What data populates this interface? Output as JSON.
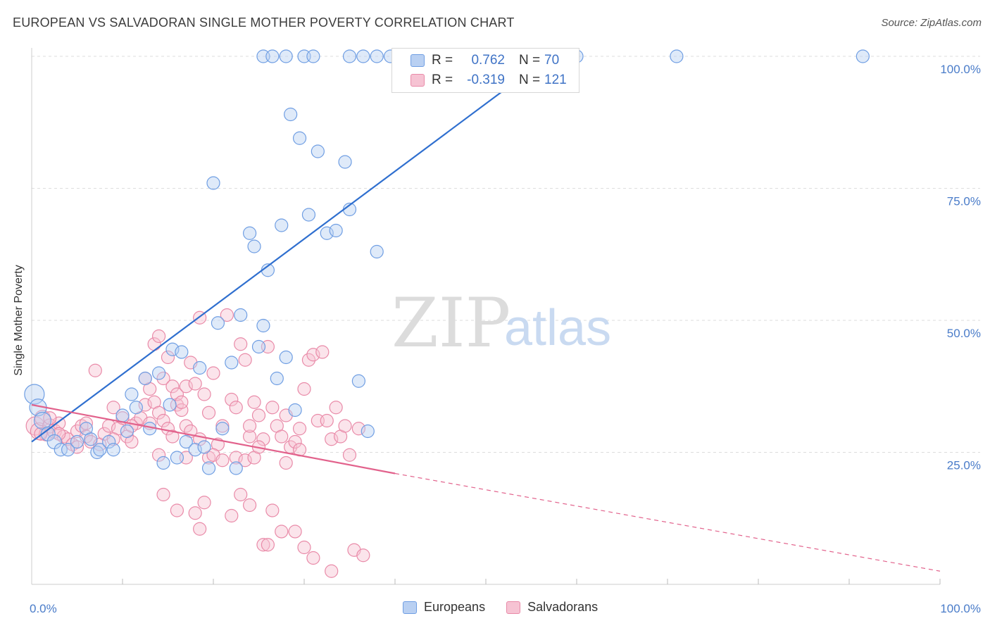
{
  "title": "EUROPEAN VS SALVADORAN SINGLE MOTHER POVERTY CORRELATION CHART",
  "source": "Source: ZipAtlas.com",
  "watermark": {
    "zip": "ZIP",
    "atlas": "atlas"
  },
  "colors": {
    "europeans": "#6f9ee3",
    "europeans_fill": "#b9d0f2",
    "europeans_line": "#2f6fcf",
    "salvadorans": "#e98aa8",
    "salvadorans_fill": "#f6c3d3",
    "salvadorans_line": "#e2628c",
    "grid": "#dddddd",
    "tick": "#4a7cc9"
  },
  "legend": {
    "rows": [
      {
        "r_label": "R =",
        "r_value": "0.762",
        "n_label": "N =",
        "n_value": "70"
      },
      {
        "r_label": "R =",
        "r_value": "-0.319",
        "n_label": "N =",
        "n_value": "121"
      }
    ]
  },
  "bottom_legend": [
    "Europeans",
    "Salvadorans"
  ],
  "chart_data": {
    "type": "scatter",
    "title": "EUROPEAN VS SALVADORAN SINGLE MOTHER POVERTY CORRELATION CHART",
    "xlabel": "",
    "ylabel": "Single Mother Poverty",
    "xlim": [
      0,
      100
    ],
    "ylim": [
      0,
      100
    ],
    "x_ticks": [
      "0.0%",
      "100.0%"
    ],
    "y_ticks": [
      {
        "value": 25,
        "label": "25.0%"
      },
      {
        "value": 50,
        "label": "50.0%"
      },
      {
        "value": 75,
        "label": "75.0%"
      },
      {
        "value": 100,
        "label": "100.0%"
      }
    ],
    "grid": true,
    "legend_position": "top-center",
    "series": [
      {
        "name": "Europeans",
        "r": 0.762,
        "n": 70,
        "trend": {
          "x": [
            0,
            57
          ],
          "y": [
            27,
            100
          ],
          "dashed_to": null
        },
        "points": [
          [
            0.3,
            36,
            14
          ],
          [
            0.7,
            33.5,
            12
          ],
          [
            1.2,
            31,
            12
          ],
          [
            1.8,
            28.5,
            10
          ],
          [
            2.5,
            27,
            10
          ],
          [
            3.2,
            25.5,
            9
          ],
          [
            4,
            25.5,
            9
          ],
          [
            5,
            27,
            9
          ],
          [
            6,
            29.5,
            9
          ],
          [
            6.5,
            27.5,
            9
          ],
          [
            7.2,
            25,
            9
          ],
          [
            7.5,
            25.5,
            9
          ],
          [
            8.5,
            27,
            9
          ],
          [
            9,
            25.5,
            9
          ],
          [
            10,
            32,
            9
          ],
          [
            10.5,
            29,
            9
          ],
          [
            11,
            36,
            9
          ],
          [
            11.5,
            33.5,
            9
          ],
          [
            12.5,
            39,
            9
          ],
          [
            13,
            29.5,
            9
          ],
          [
            14,
            40,
            9
          ],
          [
            14.5,
            23,
            9
          ],
          [
            15.2,
            34,
            9
          ],
          [
            15.5,
            44.5,
            9
          ],
          [
            16,
            24,
            9
          ],
          [
            16.5,
            44,
            9
          ],
          [
            17,
            27,
            9
          ],
          [
            18,
            25.5,
            9
          ],
          [
            18.5,
            41,
            9
          ],
          [
            19,
            26,
            9
          ],
          [
            19.5,
            22,
            9
          ],
          [
            20,
            76,
            9
          ],
          [
            20.5,
            49.5,
            9
          ],
          [
            21,
            29.5,
            9
          ],
          [
            22,
            42,
            9
          ],
          [
            22.5,
            22,
            9
          ],
          [
            23,
            51,
            9
          ],
          [
            24,
            66.5,
            9
          ],
          [
            24.5,
            64,
            9
          ],
          [
            25,
            45,
            9
          ],
          [
            25.5,
            49,
            9
          ],
          [
            26,
            59.5,
            9
          ],
          [
            27,
            39,
            9
          ],
          [
            27.5,
            68,
            9
          ],
          [
            28,
            43,
            9
          ],
          [
            28.5,
            89,
            9
          ],
          [
            29,
            33,
            9
          ],
          [
            29.5,
            84.5,
            9
          ],
          [
            30.5,
            70,
            9
          ],
          [
            31.5,
            82,
            9
          ],
          [
            32.5,
            66.5,
            9
          ],
          [
            33.5,
            67,
            9
          ],
          [
            34.5,
            80,
            9
          ],
          [
            35,
            71,
            9
          ],
          [
            36,
            38.5,
            9
          ],
          [
            37,
            29,
            9
          ],
          [
            38,
            63,
            9
          ],
          [
            25.5,
            100,
            9
          ],
          [
            26.5,
            100,
            9
          ],
          [
            28,
            100,
            9
          ],
          [
            30,
            100,
            9
          ],
          [
            31,
            100,
            9
          ],
          [
            35,
            100,
            9
          ],
          [
            36.5,
            100,
            9
          ],
          [
            38,
            100,
            9
          ],
          [
            39.5,
            100,
            9
          ],
          [
            42,
            100,
            9
          ],
          [
            60,
            100,
            9
          ],
          [
            71,
            100,
            9
          ],
          [
            91.5,
            100,
            9
          ]
        ]
      },
      {
        "name": "Salvadorans",
        "r": -0.319,
        "n": 121,
        "trend": {
          "x": [
            0,
            40
          ],
          "y": [
            34,
            21
          ],
          "dashed_to": [
            100,
            2.5
          ]
        },
        "points": [
          [
            0.4,
            30,
            13
          ],
          [
            0.8,
            29,
            12
          ],
          [
            1.2,
            31.5,
            11
          ],
          [
            1.6,
            28.5,
            10
          ],
          [
            2,
            30,
            10
          ],
          [
            2.5,
            29,
            10
          ],
          [
            3,
            30.5,
            9
          ],
          [
            3.5,
            28,
            9
          ],
          [
            4,
            27.5,
            9
          ],
          [
            4.5,
            26.5,
            9
          ],
          [
            5,
            29,
            9
          ],
          [
            5.5,
            30,
            9
          ],
          [
            6,
            28,
            9
          ],
          [
            6.5,
            27,
            9
          ],
          [
            7,
            40.5,
            9
          ],
          [
            7.5,
            26.5,
            9
          ],
          [
            8,
            28.5,
            9
          ],
          [
            8.5,
            30,
            9
          ],
          [
            9,
            33.5,
            9
          ],
          [
            9.5,
            29.5,
            9
          ],
          [
            10,
            31.5,
            9
          ],
          [
            10.5,
            28,
            9
          ],
          [
            11,
            27,
            9
          ],
          [
            11.5,
            30.5,
            9
          ],
          [
            12,
            31.5,
            9
          ],
          [
            12.5,
            34,
            9
          ],
          [
            13,
            30.5,
            9
          ],
          [
            13.5,
            34.5,
            9
          ],
          [
            14,
            32.5,
            9
          ],
          [
            14.5,
            31,
            9
          ],
          [
            15,
            29.5,
            9
          ],
          [
            15.5,
            28,
            9
          ],
          [
            16,
            34,
            9
          ],
          [
            16.5,
            33,
            9
          ],
          [
            17,
            30,
            9
          ],
          [
            17.5,
            29,
            9
          ],
          [
            12.5,
            39,
            9
          ],
          [
            13,
            37,
            9
          ],
          [
            13.5,
            45.5,
            9
          ],
          [
            14,
            47,
            9
          ],
          [
            14.5,
            39,
            9
          ],
          [
            15,
            43,
            9
          ],
          [
            15.5,
            37.5,
            9
          ],
          [
            16,
            36,
            9
          ],
          [
            16.5,
            34.5,
            9
          ],
          [
            17,
            37.5,
            9
          ],
          [
            17.5,
            42,
            9
          ],
          [
            18,
            38,
            9
          ],
          [
            18.5,
            50.5,
            9
          ],
          [
            19,
            36,
            9
          ],
          [
            19.5,
            32.5,
            9
          ],
          [
            20,
            40,
            9
          ],
          [
            20.5,
            26.5,
            9
          ],
          [
            21,
            30,
            9
          ],
          [
            21.5,
            51,
            9
          ],
          [
            22,
            35,
            9
          ],
          [
            22.5,
            33.5,
            9
          ],
          [
            23,
            45.5,
            9
          ],
          [
            23.5,
            42.5,
            9
          ],
          [
            24,
            28,
            9
          ],
          [
            24.5,
            34.5,
            9
          ],
          [
            25,
            32,
            9
          ],
          [
            25.5,
            27.5,
            9
          ],
          [
            26,
            45,
            9
          ],
          [
            26.5,
            33.5,
            9
          ],
          [
            27,
            30,
            9
          ],
          [
            27.5,
            28,
            9
          ],
          [
            28,
            32,
            9
          ],
          [
            28.5,
            26,
            9
          ],
          [
            29,
            27,
            9
          ],
          [
            29.5,
            29.5,
            9
          ],
          [
            30,
            37,
            9
          ],
          [
            30.5,
            42.5,
            9
          ],
          [
            31,
            43.5,
            9
          ],
          [
            31.5,
            31,
            9
          ],
          [
            32,
            44,
            9
          ],
          [
            32.5,
            31,
            9
          ],
          [
            33,
            27.5,
            9
          ],
          [
            33.5,
            33.5,
            9
          ],
          [
            34,
            28,
            9
          ],
          [
            35,
            24.5,
            9
          ],
          [
            36,
            29.5,
            9
          ],
          [
            14,
            24.5,
            9
          ],
          [
            14.5,
            17,
            9
          ],
          [
            16,
            14,
            9
          ],
          [
            17,
            24,
            9
          ],
          [
            18,
            13.5,
            9
          ],
          [
            18.5,
            10.5,
            9
          ],
          [
            19,
            15.5,
            9
          ],
          [
            19.5,
            24,
            9
          ],
          [
            20,
            24.5,
            9
          ],
          [
            21,
            23.5,
            9
          ],
          [
            22,
            13,
            9
          ],
          [
            22.5,
            24,
            9
          ],
          [
            23,
            17,
            9
          ],
          [
            23.5,
            23.5,
            9
          ],
          [
            24,
            15,
            9
          ],
          [
            24.5,
            24,
            9
          ],
          [
            25,
            26,
            9
          ],
          [
            25.5,
            7.5,
            9
          ],
          [
            26,
            7.5,
            9
          ],
          [
            26.5,
            14,
            9
          ],
          [
            27.5,
            10,
            9
          ],
          [
            28,
            23,
            9
          ],
          [
            29,
            10,
            9
          ],
          [
            30,
            7,
            9
          ],
          [
            31,
            5,
            9
          ],
          [
            33,
            2.5,
            9
          ],
          [
            35.5,
            6.5,
            9
          ],
          [
            36.5,
            5.5,
            9
          ],
          [
            34.5,
            30,
            9
          ],
          [
            29.5,
            25.5,
            9
          ],
          [
            24,
            30,
            9
          ],
          [
            18.5,
            27.5,
            9
          ],
          [
            11,
            30,
            9
          ],
          [
            9,
            27.5,
            9
          ],
          [
            5,
            26,
            9
          ],
          [
            3,
            28.5,
            9
          ],
          [
            2,
            31.5,
            9
          ],
          [
            1,
            28.5,
            9
          ],
          [
            6,
            30.5,
            9
          ]
        ]
      }
    ]
  }
}
